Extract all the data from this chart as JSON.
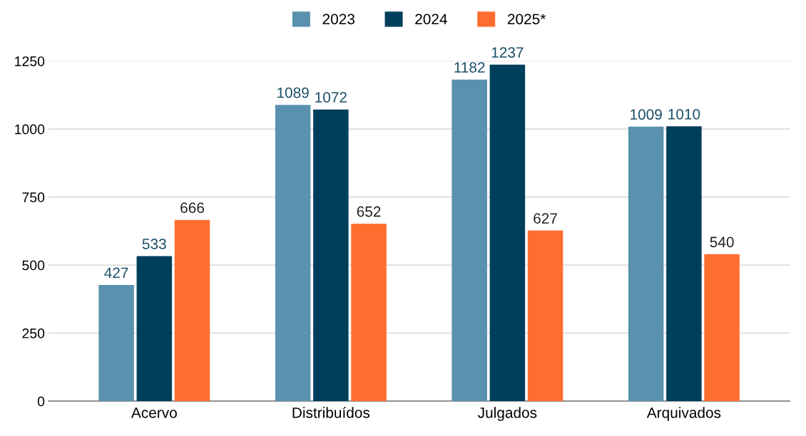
{
  "chart_data": {
    "type": "bar",
    "categories": [
      "Acervo",
      "Distribuídos",
      "Julgados",
      "Arquivados"
    ],
    "series": [
      {
        "name": "2023",
        "color": "#5a91ae",
        "values": [
          427,
          1089,
          1182,
          1009
        ]
      },
      {
        "name": "2024",
        "color": "#003f5c",
        "values": [
          533,
          1072,
          1237,
          1010
        ]
      },
      {
        "name": "2025*",
        "color": "#ff6e2f",
        "values": [
          666,
          652,
          627,
          540
        ]
      }
    ],
    "ylim": [
      0,
      1250
    ],
    "yticks": [
      0,
      250,
      500,
      750,
      1000,
      1250
    ],
    "grid": "y",
    "legend": "top",
    "data_labels": true
  }
}
